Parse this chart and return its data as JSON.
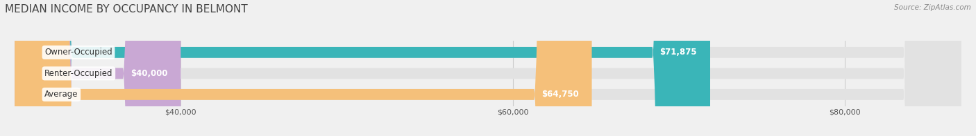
{
  "title": "MEDIAN INCOME BY OCCUPANCY IN BELMONT",
  "source": "Source: ZipAtlas.com",
  "categories": [
    "Owner-Occupied",
    "Renter-Occupied",
    "Average"
  ],
  "values": [
    71875,
    40000,
    64750
  ],
  "bar_colors": [
    "#3ab5b8",
    "#c9a8d4",
    "#f5c07a"
  ],
  "bar_labels": [
    "$71,875",
    "$40,000",
    "$64,750"
  ],
  "xlim_min": 30000,
  "xlim_max": 87000,
  "xticks": [
    40000,
    60000,
    80000
  ],
  "xtick_labels": [
    "$40,000",
    "$60,000",
    "$80,000"
  ],
  "background_color": "#f0f0f0",
  "bar_bg_color": "#e2e2e2",
  "title_fontsize": 11,
  "label_fontsize": 8.5,
  "bar_height": 0.52
}
